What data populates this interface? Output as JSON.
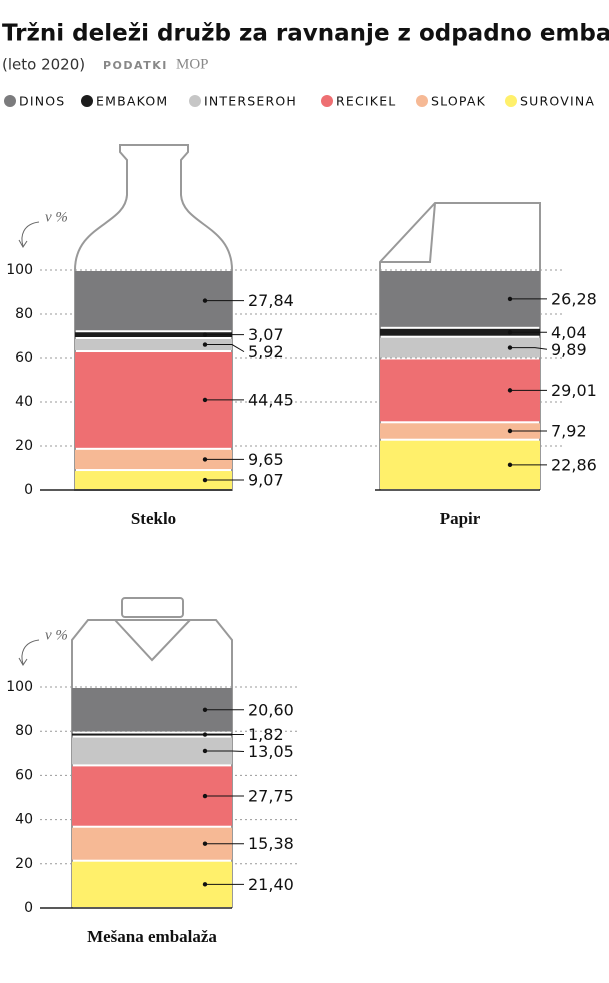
{
  "title": "Tržni deleži družb za ravnanje z odpadno embalažo",
  "subtitle": "(leto 2020)",
  "source_label": "PODATKI",
  "source": "MOP",
  "chart_data": [
    {
      "type": "stacked-bar",
      "category": "Steklo",
      "axis_label": "v %",
      "ylim": [
        0,
        100
      ],
      "yticks": [
        0,
        20,
        40,
        60,
        80,
        100
      ],
      "grid": true,
      "series": [
        {
          "name": "DINOS",
          "color": "#7b7b7d",
          "values": [
            27.84
          ],
          "value_labels": [
            "27,84"
          ]
        },
        {
          "name": "EMBAKOM",
          "color": "#1c1c1c",
          "values": [
            3.07
          ],
          "value_labels": [
            "3,07"
          ]
        },
        {
          "name": "INTERSEROH",
          "color": "#c6c6c6",
          "values": [
            5.92
          ],
          "value_labels": [
            "5,92"
          ]
        },
        {
          "name": "RECIKEL",
          "color": "#ee6f72",
          "values": [
            44.45
          ],
          "value_labels": [
            "44,45"
          ]
        },
        {
          "name": "SLOPAK",
          "color": "#f6b995",
          "values": [
            9.65
          ],
          "value_labels": [
            "9,65"
          ]
        },
        {
          "name": "SUROVINA",
          "color": "#fff06b",
          "values": [
            9.07
          ],
          "value_labels": [
            "9,07"
          ]
        }
      ]
    },
    {
      "type": "stacked-bar",
      "category": "Papir",
      "ylim": [
        0,
        100
      ],
      "series": [
        {
          "name": "DINOS",
          "color": "#7b7b7d",
          "values": [
            26.28
          ],
          "value_labels": [
            "26,28"
          ]
        },
        {
          "name": "EMBAKOM",
          "color": "#1c1c1c",
          "values": [
            4.04
          ],
          "value_labels": [
            "4,04"
          ]
        },
        {
          "name": "INTERSEROH",
          "color": "#c6c6c6",
          "values": [
            9.89
          ],
          "value_labels": [
            "9,89"
          ]
        },
        {
          "name": "RECIKEL",
          "color": "#ee6f72",
          "values": [
            29.01
          ],
          "value_labels": [
            "29,01"
          ]
        },
        {
          "name": "SLOPAK",
          "color": "#f6b995",
          "values": [
            7.92
          ],
          "value_labels": [
            "7,92"
          ]
        },
        {
          "name": "SUROVINA",
          "color": "#fff06b",
          "values": [
            22.86
          ],
          "value_labels": [
            "22,86"
          ]
        }
      ]
    },
    {
      "type": "stacked-bar",
      "category": "Mešana embalaža",
      "axis_label": "v %",
      "ylim": [
        0,
        100
      ],
      "yticks": [
        0,
        20,
        40,
        60,
        80,
        100
      ],
      "grid": true,
      "series": [
        {
          "name": "DINOS",
          "color": "#7b7b7d",
          "values": [
            20.6
          ],
          "value_labels": [
            "20,60"
          ]
        },
        {
          "name": "EMBAKOM",
          "color": "#1c1c1c",
          "values": [
            1.82
          ],
          "value_labels": [
            "1,82"
          ]
        },
        {
          "name": "INTERSEROH",
          "color": "#c6c6c6",
          "values": [
            13.05
          ],
          "value_labels": [
            "13,05"
          ]
        },
        {
          "name": "RECIKEL",
          "color": "#ee6f72",
          "values": [
            27.75
          ],
          "value_labels": [
            "27,75"
          ]
        },
        {
          "name": "SLOPAK",
          "color": "#f6b995",
          "values": [
            15.38
          ],
          "value_labels": [
            "15,38"
          ]
        },
        {
          "name": "SUROVINA",
          "color": "#fff06b",
          "values": [
            21.4
          ],
          "value_labels": [
            "21,40"
          ]
        }
      ]
    }
  ]
}
